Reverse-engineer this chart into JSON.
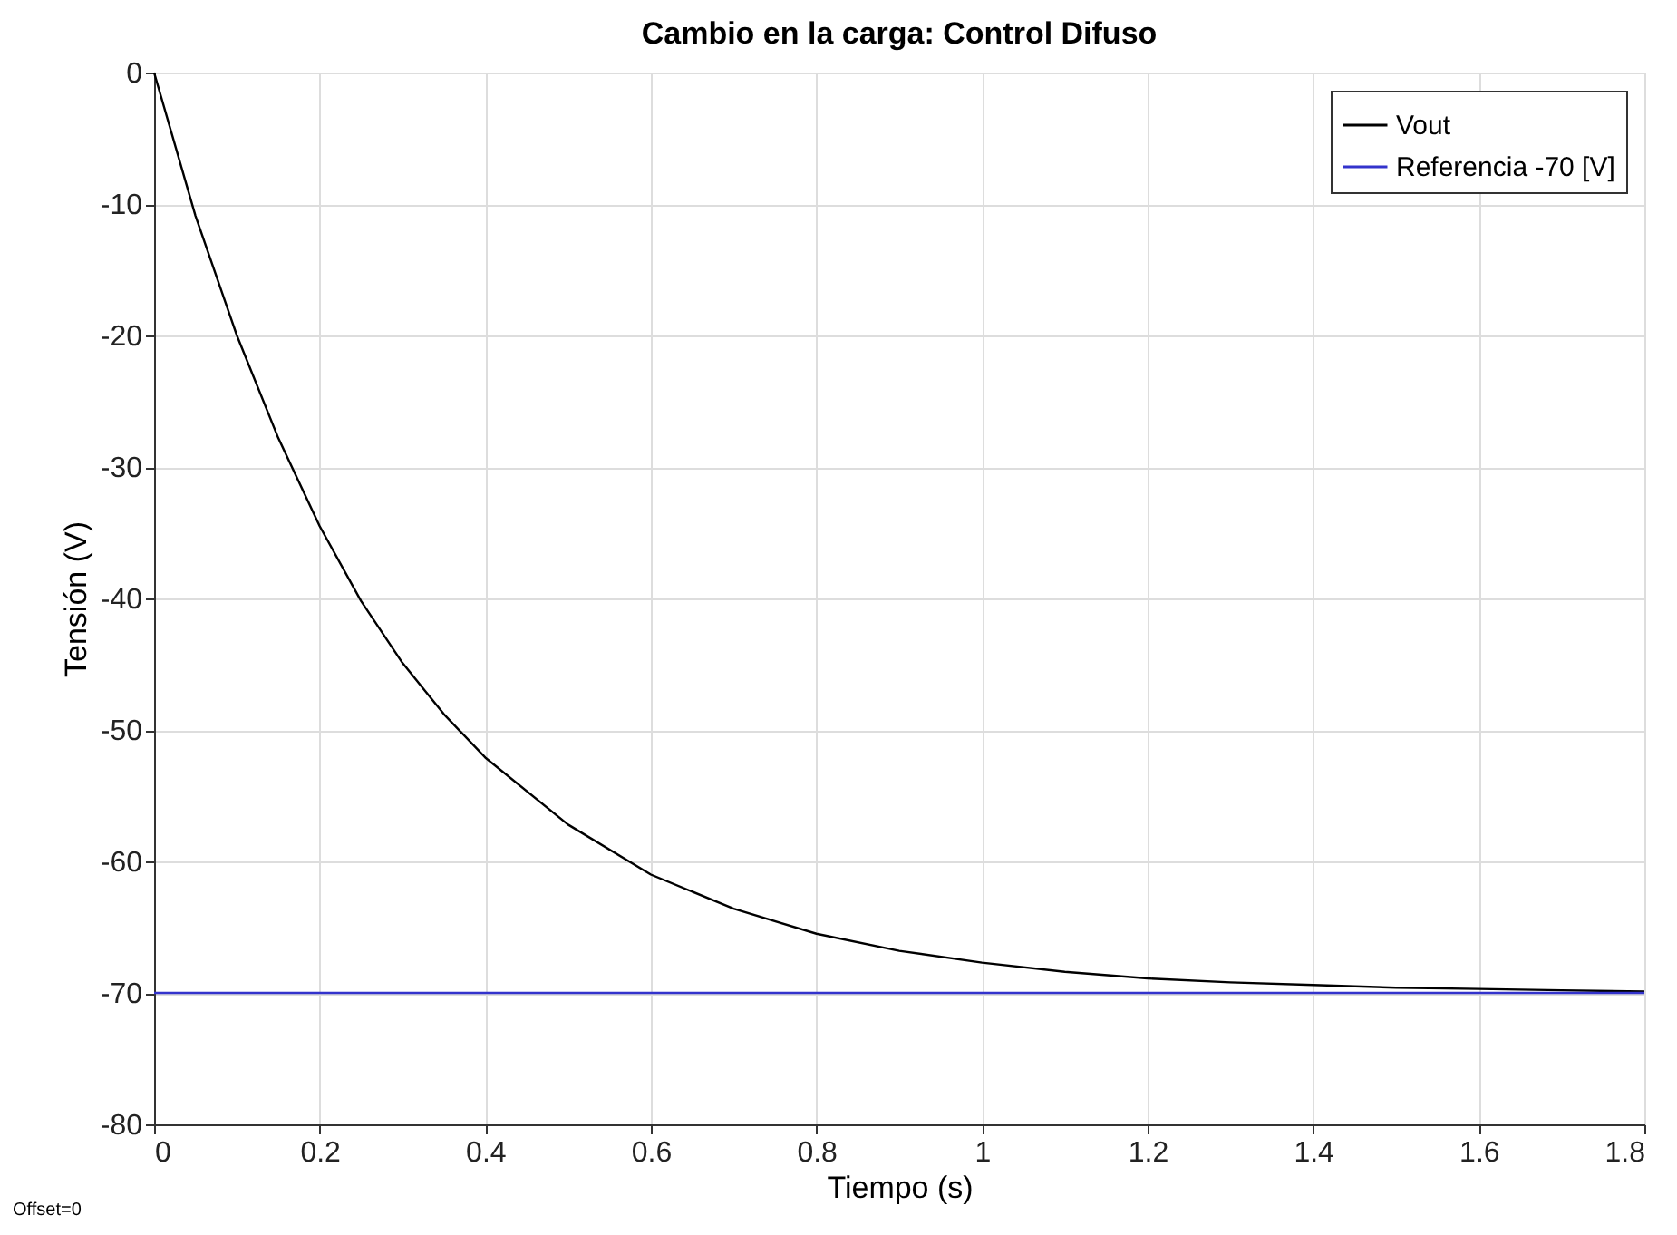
{
  "chart_data": {
    "type": "line",
    "title": "Cambio en la carga: Control Difuso",
    "xlabel": "Tiempo (s)",
    "ylabel": "Tensión (V)",
    "annotations": [
      "Offset=0"
    ],
    "xlim": [
      0,
      1.8
    ],
    "xticks": [
      0,
      0.2,
      0.4,
      0.6,
      0.8,
      1,
      1.2,
      1.4,
      1.6,
      1.8
    ],
    "ylim": [
      -80,
      0
    ],
    "yticks": [
      -80,
      -70,
      -60,
      -50,
      -40,
      -30,
      -20,
      -10,
      0
    ],
    "grid": true,
    "legend": "top right",
    "marker": "none",
    "line_style": "solid",
    "series": [
      {
        "name": "Vout",
        "color": "#000000",
        "x": [
          0,
          0.05,
          0.1,
          0.15,
          0.2,
          0.25,
          0.3,
          0.35,
          0.4,
          0.5,
          0.6,
          0.7,
          0.8,
          0.9,
          1.0,
          1.1,
          1.2,
          1.3,
          1.4,
          1.5,
          1.6,
          1.7,
          1.8
        ],
        "values": [
          0,
          -10.9,
          -20,
          -27.8,
          -34.5,
          -40.2,
          -44.9,
          -48.8,
          -52.1,
          -57.2,
          -61,
          -63.6,
          -65.5,
          -66.8,
          -67.7,
          -68.4,
          -68.9,
          -69.2,
          -69.4,
          -69.6,
          -69.7,
          -69.8,
          -69.9
        ]
      },
      {
        "name": "Referencia -70 [V]",
        "color": "#3333cc",
        "x": [
          0,
          1.8
        ],
        "values": [
          -70,
          -70
        ]
      }
    ]
  }
}
